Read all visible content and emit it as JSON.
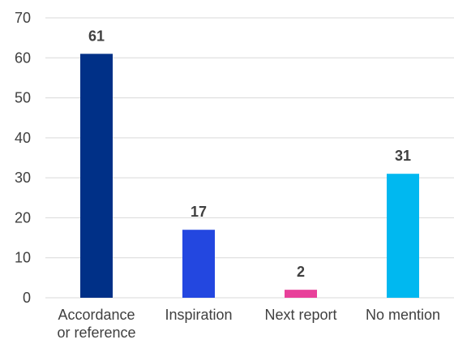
{
  "chart_data": {
    "type": "bar",
    "categories": [
      [
        "Accordance",
        "or reference"
      ],
      [
        "Inspiration"
      ],
      [
        "Next report"
      ],
      [
        "No mention"
      ]
    ],
    "values": [
      61,
      17,
      2,
      31
    ],
    "colors": [
      "#003087",
      "#2347e0",
      "#e8409a",
      "#00b8f0"
    ],
    "ylim": [
      0,
      70
    ],
    "yticks": [
      0,
      10,
      20,
      30,
      40,
      50,
      60,
      70
    ],
    "grid": true,
    "legend": "none",
    "data_labels": true
  }
}
